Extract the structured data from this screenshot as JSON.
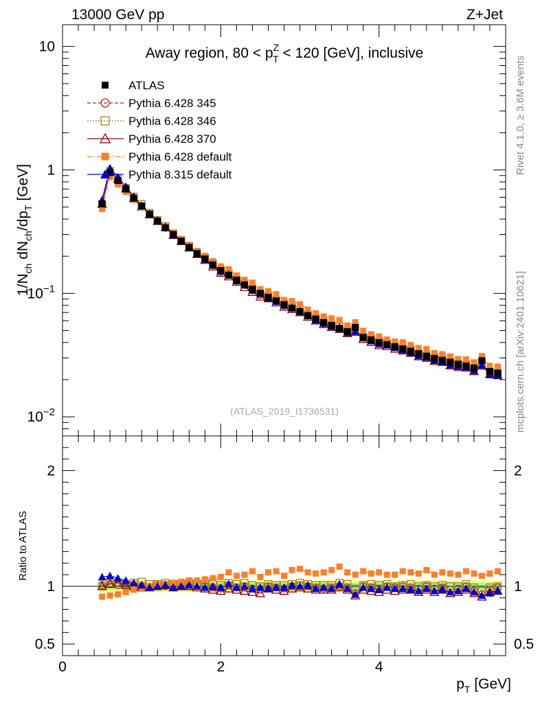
{
  "header": {
    "left": "13000 GeV pp",
    "right": "Z+Jet"
  },
  "side_labels": {
    "rivet": "Rivet 4.1.0, ≥ 3.6M events",
    "mcplots": "mcplots.cern.ch [arXiv:2401.10621]"
  },
  "colors": {
    "atlas": "#000000",
    "p345": "#b22222",
    "p346": "#a0822d",
    "p370": "#8b0000",
    "p6def": "#ff7f2a",
    "p8def": "#0000cc",
    "band_inner": "#99ff99",
    "band_outer": "#ffff66"
  },
  "chart_data": [
    {
      "type": "line",
      "title_parts": {
        "prefix": "Away region, 80 < p",
        "sup": "Z",
        "sub": "T",
        "suffix": " < 120 [GeV], inclusive"
      },
      "ylabel_parts": [
        "1/N",
        "ch",
        " dN",
        "ch",
        "/dp",
        "T",
        " [GeV]"
      ],
      "yscale": "log",
      "ylim": [
        0.007,
        15
      ],
      "xlim": [
        0,
        5.6
      ],
      "yticks": [
        {
          "value": 10,
          "label": "10"
        },
        {
          "value": 1,
          "label": "1"
        },
        {
          "value": 0.1,
          "label": "10",
          "exp": "−1"
        },
        {
          "value": 0.01,
          "label": "10",
          "exp": "−2"
        }
      ],
      "watermark": "(ATLAS_2019_I1736531)",
      "x": [
        0.5,
        0.6,
        0.7,
        0.8,
        0.9,
        1.0,
        1.1,
        1.2,
        1.3,
        1.4,
        1.5,
        1.6,
        1.7,
        1.8,
        1.9,
        2.0,
        2.1,
        2.2,
        2.3,
        2.4,
        2.5,
        2.6,
        2.7,
        2.8,
        2.9,
        3.0,
        3.1,
        3.2,
        3.3,
        3.4,
        3.5,
        3.6,
        3.7,
        3.8,
        3.9,
        4.0,
        4.1,
        4.2,
        4.3,
        4.4,
        4.5,
        4.6,
        4.7,
        4.8,
        4.9,
        5.0,
        5.1,
        5.2,
        5.3,
        5.4,
        5.5
      ],
      "atlas": [
        0.53,
        0.95,
        0.82,
        0.7,
        0.59,
        0.51,
        0.44,
        0.385,
        0.34,
        0.3,
        0.265,
        0.235,
        0.21,
        0.19,
        0.17,
        0.153,
        0.14,
        0.128,
        0.117,
        0.108,
        0.1,
        0.093,
        0.087,
        0.081,
        0.076,
        0.071,
        0.066,
        0.062,
        0.058,
        0.055,
        0.052,
        0.049,
        0.053,
        0.044,
        0.042,
        0.04,
        0.0385,
        0.037,
        0.0355,
        0.034,
        0.0325,
        0.031,
        0.0298,
        0.0287,
        0.0277,
        0.0267,
        0.0258,
        0.0249,
        0.0285,
        0.0233,
        0.0226
      ],
      "legend": [
        {
          "key": "atlas",
          "label": "ATLAS"
        },
        {
          "key": "p345",
          "label": "Pythia 6.428 345"
        },
        {
          "key": "p346",
          "label": "Pythia 6.428 346"
        },
        {
          "key": "p370",
          "label": "Pythia 6.428 370"
        },
        {
          "key": "p6def",
          "label": "Pythia 6.428 default"
        },
        {
          "key": "p8def",
          "label": "Pythia 8.315 default"
        }
      ],
      "series": [
        {
          "name": "Pythia 6.428 345",
          "key": "p345",
          "marker": "open-circle",
          "dash": "5,3",
          "ratio": [
            1.01,
            1.02,
            1.01,
            1.02,
            1.01,
            1.0,
            0.99,
            1.01,
            1.0,
            0.99,
            1.0,
            1.0,
            1.01,
            1.0,
            0.99,
            0.98,
            1.01,
            0.99,
            1.0,
            0.98,
            0.97,
            1.0,
            0.99,
            0.98,
            1.0,
            1.01,
            1.0,
            0.99,
            0.98,
            0.99,
            1.0,
            0.99,
            0.94,
            1.0,
            0.99,
            0.98,
            1.0,
            0.99,
            1.0,
            0.99,
            0.98,
            1.0,
            0.98,
            0.99,
            0.97,
            0.98,
            1.0,
            0.96,
            0.93,
            0.97,
            0.99
          ]
        },
        {
          "name": "Pythia 6.428 346",
          "key": "p346",
          "marker": "open-square",
          "dash": "2,2",
          "ratio": [
            1.0,
            1.03,
            1.03,
            1.02,
            1.03,
            1.04,
            1.02,
            1.02,
            1.03,
            1.02,
            1.02,
            1.03,
            1.02,
            1.02,
            1.03,
            1.01,
            1.03,
            1.02,
            1.03,
            1.01,
            1.0,
            1.02,
            1.01,
            1.01,
            1.02,
            1.03,
            1.02,
            1.01,
            1.01,
            1.01,
            1.03,
            1.02,
            0.98,
            1.01,
            1.02,
            1.01,
            1.02,
            1.0,
            1.01,
            1.02,
            1.0,
            1.01,
            1.0,
            1.01,
            1.0,
            1.0,
            1.02,
            0.99,
            0.96,
            0.99,
            1.0
          ]
        },
        {
          "name": "Pythia 6.428 370",
          "key": "p370",
          "marker": "open-triangle",
          "dash": "",
          "ratio": [
            1.0,
            1.02,
            1.03,
            1.01,
            1.0,
            0.99,
            0.99,
            1.0,
            1.01,
            0.99,
            1.0,
            1.0,
            0.99,
            0.98,
            0.97,
            0.96,
            0.98,
            0.97,
            0.96,
            0.95,
            0.94,
            0.98,
            0.97,
            0.96,
            0.98,
            0.99,
            0.98,
            0.97,
            0.97,
            0.97,
            0.99,
            0.97,
            0.92,
            0.97,
            0.96,
            0.95,
            0.97,
            0.96,
            0.97,
            0.97,
            0.95,
            0.97,
            0.95,
            0.97,
            0.94,
            0.95,
            0.97,
            0.94,
            0.91,
            0.95,
            0.96
          ]
        },
        {
          "name": "Pythia 6.428 default",
          "key": "p6def",
          "marker": "filled-square",
          "dash": "6,3,2,3",
          "ratio": [
            0.91,
            0.92,
            0.93,
            0.95,
            0.97,
            0.98,
            1.0,
            1.01,
            1.02,
            1.03,
            1.04,
            1.05,
            1.05,
            1.06,
            1.07,
            1.08,
            1.12,
            1.09,
            1.1,
            1.13,
            1.08,
            1.12,
            1.13,
            1.09,
            1.14,
            1.15,
            1.12,
            1.11,
            1.12,
            1.14,
            1.17,
            1.12,
            1.1,
            1.13,
            1.11,
            1.12,
            1.1,
            1.1,
            1.13,
            1.12,
            1.11,
            1.14,
            1.1,
            1.12,
            1.11,
            1.1,
            1.13,
            1.11,
            1.09,
            1.11,
            1.13
          ]
        },
        {
          "name": "Pythia 8.315 default",
          "key": "p8def",
          "marker": "filled-triangle",
          "dash": "",
          "ratio": [
            1.08,
            1.09,
            1.07,
            1.05,
            1.03,
            1.01,
            0.99,
            1.0,
            1.01,
            0.99,
            1.0,
            1.01,
            1.0,
            0.99,
            1.0,
            0.99,
            1.02,
            0.99,
            1.0,
            0.98,
            0.99,
            0.98,
            0.99,
            0.99,
            1.01,
            1.0,
            1.01,
            0.98,
            0.99,
            0.98,
            1.02,
            0.98,
            0.93,
            0.99,
            0.98,
            0.97,
            0.99,
            0.98,
            0.98,
            0.97,
            0.96,
            0.98,
            0.96,
            0.97,
            0.95,
            0.96,
            0.98,
            0.95,
            0.92,
            0.94,
            0.96
          ]
        }
      ]
    },
    {
      "type": "line",
      "ylabel": "Ratio to ATLAS",
      "xlabel_parts": [
        "p",
        "T",
        " [GeV]"
      ],
      "ylim": [
        0.4,
        2.3
      ],
      "yticks": [
        {
          "value": 2,
          "label": "2"
        },
        {
          "value": 1,
          "label": "1"
        },
        {
          "value": 0.5,
          "label": "0.5"
        }
      ],
      "xticks": [
        {
          "value": 0,
          "label": "0"
        },
        {
          "value": 2,
          "label": "2"
        },
        {
          "value": 4,
          "label": "4"
        }
      ],
      "band": {
        "inner": 0.03,
        "outer": 0.05
      }
    }
  ]
}
